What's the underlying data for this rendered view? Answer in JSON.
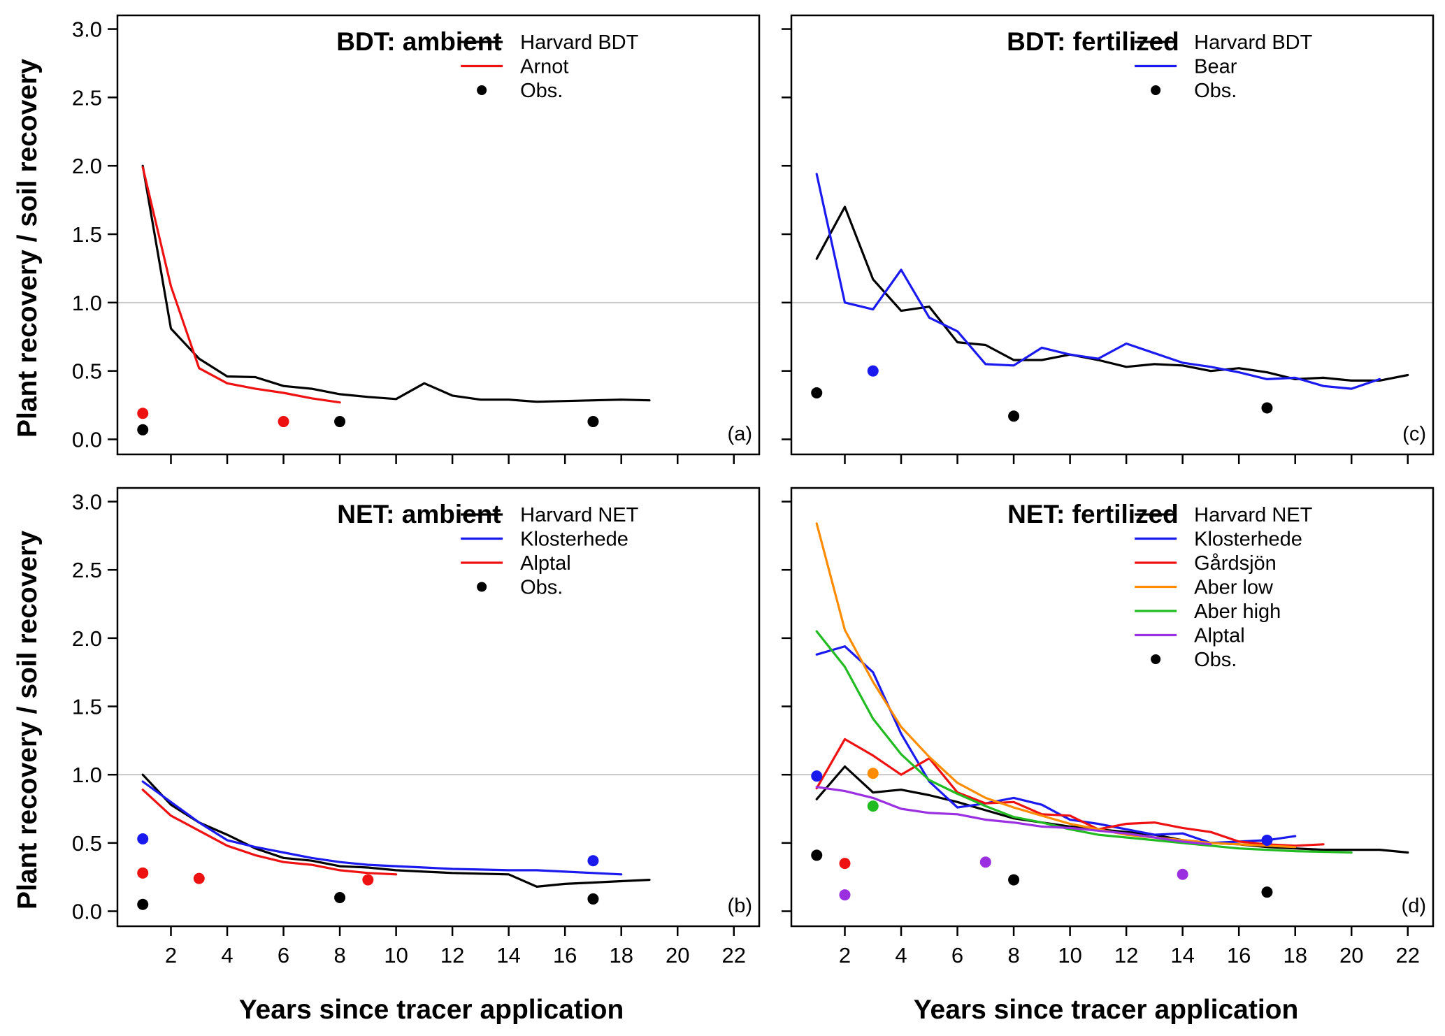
{
  "figure": {
    "ylabel": "Plant recovery / soil recovery",
    "xlabel": "Years since tracer application"
  },
  "chart_data": [
    {
      "type": "line",
      "id": "a",
      "title": "BDT: ambient",
      "panel_label": "(a)",
      "xlim": [
        0.1,
        22.9
      ],
      "ylim": [
        -0.11,
        3.1
      ],
      "yticks": [
        0.0,
        0.5,
        1.0,
        1.5,
        2.0,
        2.5,
        3.0
      ],
      "ytick_labels": [
        "0.0",
        "0.5",
        "1.0",
        "1.5",
        "2.0",
        "2.5",
        "3.0"
      ],
      "xticks": [
        2,
        4,
        6,
        8,
        10,
        12,
        14,
        16,
        18,
        20,
        22
      ],
      "xtick_labels": [],
      "reference_line": 1.0,
      "series": [
        {
          "name": "Harvard BDT",
          "color": "#000000",
          "x": [
            1,
            2,
            3,
            4,
            5,
            6,
            7,
            8,
            9,
            10,
            11,
            12,
            13,
            14,
            15,
            16,
            17,
            18,
            19
          ],
          "y": [
            2.0,
            0.81,
            0.59,
            0.46,
            0.455,
            0.39,
            0.37,
            0.33,
            0.31,
            0.295,
            0.41,
            0.32,
            0.29,
            0.29,
            0.275,
            0.28,
            0.285,
            0.29,
            0.285
          ]
        },
        {
          "name": "Arnot",
          "color": "#ee1111",
          "x": [
            1,
            2,
            3,
            4,
            5,
            6,
            7,
            8
          ],
          "y": [
            1.99,
            1.12,
            0.52,
            0.41,
            0.37,
            0.34,
            0.3,
            0.27
          ]
        }
      ],
      "observations": [
        {
          "x": 1,
          "y": 0.07,
          "color": "#000000"
        },
        {
          "x": 8,
          "y": 0.13,
          "color": "#000000"
        },
        {
          "x": 17,
          "y": 0.13,
          "color": "#000000"
        },
        {
          "x": 1,
          "y": 0.19,
          "color": "#ee1111"
        },
        {
          "x": 6,
          "y": 0.13,
          "color": "#ee1111"
        }
      ],
      "legend": [
        {
          "label": "Harvard BDT",
          "kind": "line",
          "color": "#000000"
        },
        {
          "label": "Arnot",
          "kind": "line",
          "color": "#ee1111"
        },
        {
          "label": "Obs.",
          "kind": "point",
          "color": "#000000"
        }
      ]
    },
    {
      "type": "line",
      "id": "b",
      "title": "NET: ambient",
      "panel_label": "(b)",
      "xlim": [
        0.1,
        22.9
      ],
      "ylim": [
        -0.11,
        3.1
      ],
      "yticks": [
        0.0,
        0.5,
        1.0,
        1.5,
        2.0,
        2.5,
        3.0
      ],
      "ytick_labels": [
        "0.0",
        "0.5",
        "1.0",
        "1.5",
        "2.0",
        "2.5",
        "3.0"
      ],
      "xticks": [
        2,
        4,
        6,
        8,
        10,
        12,
        14,
        16,
        18,
        20,
        22
      ],
      "xtick_labels": [
        "2",
        "4",
        "6",
        "8",
        "10",
        "12",
        "14",
        "16",
        "18",
        "20",
        "22"
      ],
      "reference_line": 1.0,
      "series": [
        {
          "name": "Harvard NET",
          "color": "#000000",
          "x": [
            1,
            2,
            3,
            4,
            5,
            6,
            7,
            8,
            9,
            10,
            11,
            12,
            13,
            14,
            15,
            16,
            17,
            18,
            19
          ],
          "y": [
            1.0,
            0.78,
            0.65,
            0.56,
            0.46,
            0.39,
            0.37,
            0.33,
            0.32,
            0.3,
            0.29,
            0.28,
            0.275,
            0.27,
            0.18,
            0.2,
            0.21,
            0.22,
            0.23
          ]
        },
        {
          "name": "Klosterhede",
          "color": "#1a1aee",
          "x": [
            1,
            2,
            3,
            4,
            5,
            6,
            7,
            8,
            9,
            10,
            11,
            12,
            13,
            14,
            15,
            16,
            17,
            18
          ],
          "y": [
            0.95,
            0.8,
            0.65,
            0.52,
            0.47,
            0.43,
            0.39,
            0.36,
            0.34,
            0.33,
            0.32,
            0.31,
            0.305,
            0.3,
            0.3,
            0.29,
            0.28,
            0.27
          ]
        },
        {
          "name": "Alptal",
          "color": "#ee1111",
          "x": [
            1,
            2,
            3,
            4,
            5,
            6,
            7,
            8,
            9,
            10
          ],
          "y": [
            0.89,
            0.7,
            0.59,
            0.48,
            0.41,
            0.36,
            0.34,
            0.3,
            0.28,
            0.27
          ]
        }
      ],
      "observations": [
        {
          "x": 1,
          "y": 0.05,
          "color": "#000000"
        },
        {
          "x": 8,
          "y": 0.1,
          "color": "#000000"
        },
        {
          "x": 17,
          "y": 0.09,
          "color": "#000000"
        },
        {
          "x": 1,
          "y": 0.53,
          "color": "#1a1aee"
        },
        {
          "x": 17,
          "y": 0.37,
          "color": "#1a1aee"
        },
        {
          "x": 1,
          "y": 0.28,
          "color": "#ee1111"
        },
        {
          "x": 3,
          "y": 0.24,
          "color": "#ee1111"
        },
        {
          "x": 9,
          "y": 0.23,
          "color": "#ee1111"
        }
      ],
      "legend": [
        {
          "label": "Harvard NET",
          "kind": "line",
          "color": "#000000"
        },
        {
          "label": "Klosterhede",
          "kind": "line",
          "color": "#1a1aee"
        },
        {
          "label": "Alptal",
          "kind": "line",
          "color": "#ee1111"
        },
        {
          "label": "Obs.",
          "kind": "point",
          "color": "#000000"
        }
      ]
    },
    {
      "type": "line",
      "id": "c",
      "title": "BDT: fertilized",
      "panel_label": "(c)",
      "xlim": [
        0.1,
        22.9
      ],
      "ylim": [
        -0.11,
        3.1
      ],
      "yticks": [
        0.0,
        0.5,
        1.0,
        1.5,
        2.0,
        2.5,
        3.0
      ],
      "ytick_labels": [],
      "xticks": [
        2,
        4,
        6,
        8,
        10,
        12,
        14,
        16,
        18,
        20,
        22
      ],
      "xtick_labels": [],
      "reference_line": 1.0,
      "series": [
        {
          "name": "Harvard BDT",
          "color": "#000000",
          "x": [
            1,
            2,
            3,
            4,
            5,
            6,
            7,
            8,
            9,
            10,
            11,
            12,
            13,
            14,
            15,
            16,
            17,
            18,
            19,
            20,
            21,
            22
          ],
          "y": [
            1.32,
            1.7,
            1.17,
            0.94,
            0.97,
            0.71,
            0.69,
            0.58,
            0.58,
            0.62,
            0.58,
            0.53,
            0.55,
            0.54,
            0.5,
            0.52,
            0.49,
            0.44,
            0.45,
            0.43,
            0.43,
            0.47
          ]
        },
        {
          "name": "Bear",
          "color": "#1a1aee",
          "x": [
            1,
            2,
            3,
            4,
            5,
            6,
            7,
            8,
            9,
            10,
            11,
            12,
            13,
            14,
            15,
            16,
            17,
            18,
            19,
            20,
            21
          ],
          "y": [
            1.94,
            1.0,
            0.95,
            1.24,
            0.89,
            0.79,
            0.55,
            0.54,
            0.67,
            0.62,
            0.59,
            0.7,
            0.63,
            0.56,
            0.53,
            0.49,
            0.44,
            0.45,
            0.39,
            0.37,
            0.44
          ]
        }
      ],
      "observations": [
        {
          "x": 1,
          "y": 0.34,
          "color": "#000000"
        },
        {
          "x": 8,
          "y": 0.17,
          "color": "#000000"
        },
        {
          "x": 17,
          "y": 0.23,
          "color": "#000000"
        },
        {
          "x": 3,
          "y": 0.5,
          "color": "#1a1aee"
        }
      ],
      "legend": [
        {
          "label": "Harvard BDT",
          "kind": "line",
          "color": "#000000"
        },
        {
          "label": "Bear",
          "kind": "line",
          "color": "#1a1aee"
        },
        {
          "label": "Obs.",
          "kind": "point",
          "color": "#000000"
        }
      ]
    },
    {
      "type": "line",
      "id": "d",
      "title": "NET: fertilized",
      "panel_label": "(d)",
      "xlim": [
        0.1,
        22.9
      ],
      "ylim": [
        -0.11,
        3.1
      ],
      "yticks": [
        0.0,
        0.5,
        1.0,
        1.5,
        2.0,
        2.5,
        3.0
      ],
      "ytick_labels": [],
      "xticks": [
        2,
        4,
        6,
        8,
        10,
        12,
        14,
        16,
        18,
        20,
        22
      ],
      "xtick_labels": [
        "2",
        "4",
        "6",
        "8",
        "10",
        "12",
        "14",
        "16",
        "18",
        "20",
        "22"
      ],
      "reference_line": 1.0,
      "series": [
        {
          "name": "Harvard NET",
          "color": "#000000",
          "x": [
            1,
            2,
            3,
            4,
            5,
            6,
            7,
            8,
            9,
            10,
            11,
            12,
            13,
            14,
            15,
            16,
            17,
            18,
            19,
            20,
            21,
            22
          ],
          "y": [
            0.82,
            1.06,
            0.87,
            0.89,
            0.85,
            0.8,
            0.74,
            0.68,
            0.65,
            0.62,
            0.6,
            0.58,
            0.56,
            0.52,
            0.5,
            0.49,
            0.47,
            0.46,
            0.45,
            0.45,
            0.45,
            0.43
          ]
        },
        {
          "name": "Klosterhede",
          "color": "#1a1aee",
          "x": [
            1,
            2,
            3,
            4,
            5,
            6,
            7,
            8,
            9,
            10,
            11,
            12,
            13,
            14,
            15,
            16,
            17,
            18
          ],
          "y": [
            1.88,
            1.94,
            1.75,
            1.3,
            0.95,
            0.76,
            0.79,
            0.83,
            0.78,
            0.67,
            0.64,
            0.6,
            0.56,
            0.57,
            0.5,
            0.51,
            0.52,
            0.55
          ]
        },
        {
          "name": "Gårdsjön",
          "color": "#ee1111",
          "x": [
            1,
            2,
            3,
            4,
            5,
            6,
            7,
            8,
            9,
            10,
            11,
            12,
            13,
            14,
            15,
            16,
            17,
            18,
            19
          ],
          "y": [
            0.9,
            1.26,
            1.14,
            1.0,
            1.12,
            0.87,
            0.79,
            0.8,
            0.71,
            0.7,
            0.6,
            0.64,
            0.65,
            0.61,
            0.58,
            0.51,
            0.49,
            0.48,
            0.49
          ]
        },
        {
          "name": "Aber low",
          "color": "#ff8c00",
          "x": [
            1,
            2,
            3,
            4,
            5,
            6,
            7,
            8,
            9,
            10,
            11,
            12,
            13,
            14,
            15,
            16,
            17,
            18
          ],
          "y": [
            2.84,
            2.06,
            1.68,
            1.35,
            1.13,
            0.94,
            0.83,
            0.76,
            0.7,
            0.64,
            0.6,
            0.56,
            0.54,
            0.52,
            0.5,
            0.49,
            0.48,
            0.47
          ]
        },
        {
          "name": "Aber high",
          "color": "#22bb22",
          "x": [
            1,
            2,
            3,
            4,
            5,
            6,
            7,
            8,
            9,
            10,
            11,
            12,
            13,
            14,
            15,
            16,
            17,
            18,
            19,
            20
          ],
          "y": [
            2.05,
            1.79,
            1.41,
            1.15,
            0.96,
            0.86,
            0.77,
            0.69,
            0.65,
            0.6,
            0.56,
            0.54,
            0.52,
            0.5,
            0.48,
            0.46,
            0.45,
            0.44,
            0.435,
            0.43
          ]
        },
        {
          "name": "Alptal",
          "color": "#9b30e0",
          "x": [
            1,
            2,
            3,
            4,
            5,
            6,
            7,
            8,
            9,
            10,
            11,
            12,
            13,
            14,
            15
          ],
          "y": [
            0.91,
            0.88,
            0.83,
            0.75,
            0.72,
            0.71,
            0.67,
            0.65,
            0.62,
            0.61,
            0.59,
            0.57,
            0.54,
            0.51,
            0.49
          ]
        }
      ],
      "observations": [
        {
          "x": 1,
          "y": 0.41,
          "color": "#000000"
        },
        {
          "x": 8,
          "y": 0.23,
          "color": "#000000"
        },
        {
          "x": 17,
          "y": 0.14,
          "color": "#000000"
        },
        {
          "x": 1,
          "y": 0.99,
          "color": "#1a1aee"
        },
        {
          "x": 17,
          "y": 0.52,
          "color": "#1a1aee"
        },
        {
          "x": 2,
          "y": 0.35,
          "color": "#ee1111"
        },
        {
          "x": 3,
          "y": 1.01,
          "color": "#ff8c00"
        },
        {
          "x": 3,
          "y": 0.77,
          "color": "#22bb22"
        },
        {
          "x": 2,
          "y": 0.12,
          "color": "#9b30e0"
        },
        {
          "x": 7,
          "y": 0.36,
          "color": "#9b30e0"
        },
        {
          "x": 14,
          "y": 0.27,
          "color": "#9b30e0"
        }
      ],
      "legend": [
        {
          "label": "Harvard NET",
          "kind": "line",
          "color": "#000000"
        },
        {
          "label": "Klosterhede",
          "kind": "line",
          "color": "#1a1aee"
        },
        {
          "label": "Gårdsjön",
          "kind": "line",
          "color": "#ee1111"
        },
        {
          "label": "Aber low",
          "kind": "line",
          "color": "#ff8c00"
        },
        {
          "label": "Aber high",
          "kind": "line",
          "color": "#22bb22"
        },
        {
          "label": "Alptal",
          "kind": "line",
          "color": "#9b30e0"
        },
        {
          "label": "Obs.",
          "kind": "point",
          "color": "#000000"
        }
      ]
    }
  ]
}
